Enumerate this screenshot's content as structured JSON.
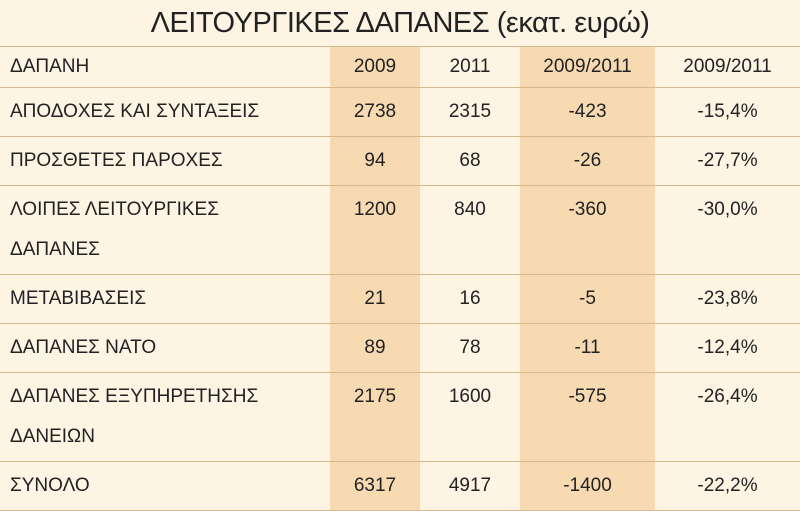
{
  "header": {
    "title": "ΛΕΙΤΟΥΡΓΙΚΕΣ ΔΑΠΑΝΕΣ (εκατ. ευρώ)"
  },
  "table": {
    "columns": [
      "ΔΑΠΑΝΗ",
      "2009",
      "2011",
      "2009/2011",
      "2009/2011"
    ],
    "rows": [
      {
        "label": [
          "ΑΠΟΔΟΧΕΣ ΚΑΙ ΣΥΝΤΑΞΕΙΣ"
        ],
        "cells": [
          "2738",
          "2315",
          "-423",
          "-15,4%"
        ]
      },
      {
        "label": [
          "ΠΡΟΣΘΕΤΕΣ ΠΑΡΟΧΕΣ"
        ],
        "cells": [
          "94",
          "68",
          "-26",
          "-27,7%"
        ]
      },
      {
        "label": [
          "ΛΟΙΠΕΣ ΛΕΙΤΟΥΡΓΙΚΕΣ",
          "ΔΑΠΑΝΕΣ"
        ],
        "cells": [
          "1200",
          "840",
          "-360",
          "-30,0%"
        ]
      },
      {
        "label": [
          "ΜΕΤΑΒΙΒΑΣΕΙΣ"
        ],
        "cells": [
          "21",
          "16",
          "-5",
          "-23,8%"
        ]
      },
      {
        "label": [
          "ΔΑΠΑΝΕΣ ΝΑΤΟ"
        ],
        "cells": [
          "89",
          "78",
          "-11",
          "-12,4%"
        ]
      },
      {
        "label": [
          "ΔΑΠΑΝΕΣ ΕΞΥΠΗΡΕΤΗΣΗΣ",
          "ΔΑΝΕΙΩΝ"
        ],
        "cells": [
          "2175",
          "1600",
          "-575",
          "-26,4%"
        ]
      },
      {
        "label": [
          "ΣΥΝΟΛΟ"
        ],
        "cells": [
          "6317",
          "4917",
          "-1400",
          "-22,2%"
        ]
      }
    ]
  }
}
